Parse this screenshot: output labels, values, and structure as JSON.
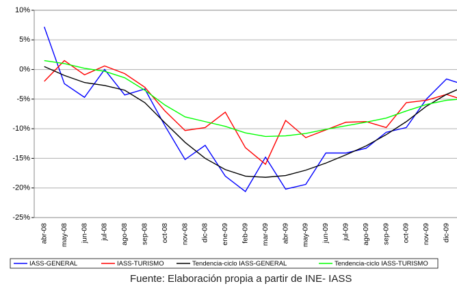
{
  "chart_data": {
    "type": "line",
    "categories": [
      "abr-08",
      "may-08",
      "jun-08",
      "jul-08",
      "ago-08",
      "sep-08",
      "oct-08",
      "nov-08",
      "dic-08",
      "ene-09",
      "feb-09",
      "mar-09",
      "abr-09",
      "may-09",
      "jun-09",
      "jul-09",
      "ago-09",
      "sep-09",
      "oct-09",
      "nov-09",
      "dic-09",
      null
    ],
    "series": [
      {
        "name": "IASS-GENERAL",
        "color": "#0000ff",
        "values": [
          7.2,
          -2.4,
          -4.7,
          0,
          -4.3,
          -3.3,
          -9.5,
          -15.2,
          -12.8,
          -18,
          -20.6,
          -14.8,
          -20.2,
          -19.4,
          -14.1,
          -14.1,
          -13.3,
          -10.6,
          -9.8,
          -5,
          -1.6,
          -2.7
        ]
      },
      {
        "name": "IASS-TURISMO",
        "color": "#ff0000",
        "values": [
          -2,
          1.5,
          -0.9,
          0.6,
          -0.7,
          -3,
          -7,
          -10.3,
          -9.8,
          -7.2,
          -13.2,
          -16,
          -8.6,
          -11.5,
          -10.2,
          -8.9,
          -8.8,
          -9.8,
          -5.6,
          -5.2,
          -4.2,
          -5.3
        ]
      },
      {
        "name": "Tendencia-ciclo IASS-GENERAL",
        "color": "#000000",
        "values": [
          0.5,
          -1,
          -2.2,
          -2.7,
          -3.5,
          -5.6,
          -9,
          -12.3,
          -15,
          -16.9,
          -18,
          -18.2,
          -17.9,
          -17,
          -15.8,
          -14.4,
          -12.9,
          -11,
          -8.8,
          -6.2,
          -4.2,
          -2.7
        ]
      },
      {
        "name": "Tendencia-ciclo IASS-TURISMO",
        "color": "#00ff00",
        "values": [
          1.5,
          1,
          0.2,
          -0.3,
          -1.4,
          -3.5,
          -6,
          -8,
          -8.8,
          -9.6,
          -10.7,
          -11.3,
          -11.2,
          -10.8,
          -10.1,
          -9.5,
          -8.9,
          -8.2,
          -7,
          -5.9,
          -5.2,
          -4.9
        ]
      }
    ],
    "ylim": [
      -25,
      10
    ],
    "yticks": [
      {
        "value": -25,
        "label": "-25%"
      },
      {
        "value": -20,
        "label": "-20%"
      },
      {
        "value": -15,
        "label": "-15%"
      },
      {
        "value": -10,
        "label": "-10%"
      },
      {
        "value": -5,
        "label": "-5%"
      },
      {
        "value": 0,
        "label": "0%"
      },
      {
        "value": 5,
        "label": "5%"
      },
      {
        "value": 10,
        "label": "10%"
      }
    ],
    "grid": true,
    "legend": "bottom",
    "source": "Fuente: Elaboración propia a partir de INE- IASS"
  }
}
